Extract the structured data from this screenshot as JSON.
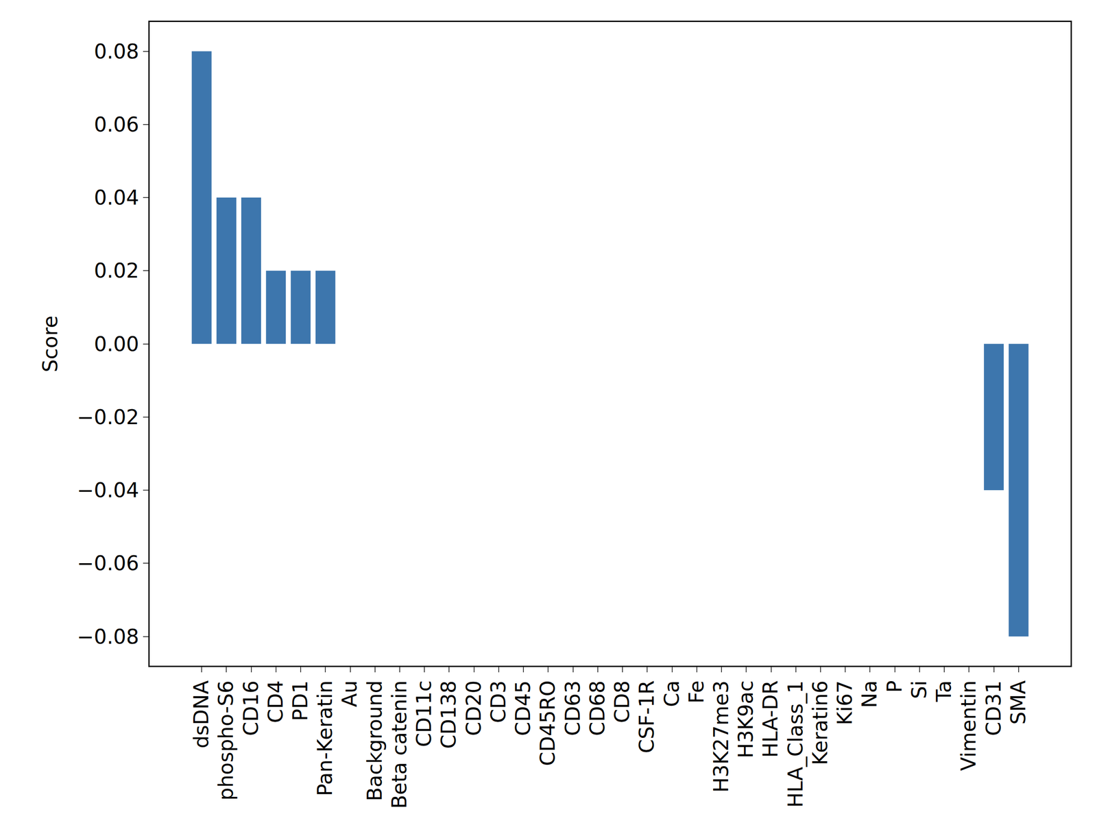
{
  "chart_data": {
    "type": "bar",
    "ylabel": "Score",
    "categories": [
      "dsDNA",
      "phospho-S6",
      "CD16",
      "CD4",
      "PD1",
      "Pan-Keratin",
      "Au",
      "Background",
      "Beta catenin",
      "CD11c",
      "CD138",
      "CD20",
      "CD3",
      "CD45",
      "CD45RO",
      "CD63",
      "CD68",
      "CD8",
      "CSF-1R",
      "Ca",
      "Fe",
      "H3K27me3",
      "H3K9ac",
      "HLA-DR",
      "HLA_Class_1",
      "Keratin6",
      "Ki67",
      "Na",
      "P",
      "Si",
      "Ta",
      "Vimentin",
      "CD31",
      "SMA"
    ],
    "values": [
      0.08,
      0.04,
      0.04,
      0.02,
      0.02,
      0.02,
      0,
      0,
      0,
      0,
      0,
      0,
      0,
      0,
      0,
      0,
      0,
      0,
      0,
      0,
      0,
      0,
      0,
      0,
      0,
      0,
      0,
      0,
      0,
      0,
      0,
      0,
      -0.04,
      -0.08
    ],
    "color": "#3d76ad",
    "ylim": [
      -0.088,
      0.088
    ],
    "yticks": [
      {
        "value": -0.08,
        "label": "−0.08"
      },
      {
        "value": -0.06,
        "label": "−0.06"
      },
      {
        "value": -0.04,
        "label": "−0.04"
      },
      {
        "value": -0.02,
        "label": "−0.02"
      },
      {
        "value": 0,
        "label": "0.00"
      },
      0.02,
      0.04,
      0.06,
      0.08
    ],
    "grid": false
  }
}
